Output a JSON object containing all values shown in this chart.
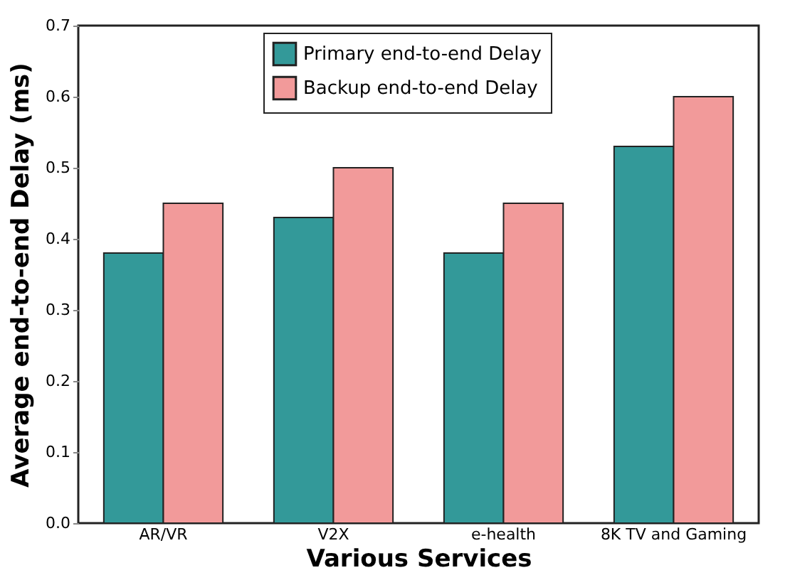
{
  "chart_data": {
    "type": "bar",
    "xlabel": "Various Services",
    "ylabel": "Average end-to-end Delay (ms)",
    "categories": [
      "AR/VR",
      "V2X",
      "e-health",
      "8K TV and Gaming"
    ],
    "series": [
      {
        "name": "Primary end-to-end Delay",
        "color": "#339999",
        "values": [
          0.38,
          0.43,
          0.38,
          0.53
        ]
      },
      {
        "name": "Backup end-to-end Delay",
        "color": "#f29a9a",
        "values": [
          0.45,
          0.5,
          0.45,
          0.6
        ]
      }
    ],
    "ylim": [
      0,
      0.7
    ],
    "yticks": [
      {
        "value": 0,
        "label": "0.0"
      },
      {
        "value": 0.1,
        "label": "0.1"
      },
      {
        "value": 0.2,
        "label": "0.2"
      },
      {
        "value": 0.3,
        "label": "0.3"
      },
      {
        "value": 0.4,
        "label": "0.4"
      },
      {
        "value": 0.5,
        "label": "0.5"
      },
      {
        "value": 0.6,
        "label": "0.6"
      },
      {
        "value": 0.7,
        "label": "0.7"
      }
    ],
    "grid": false,
    "legend": "top"
  }
}
